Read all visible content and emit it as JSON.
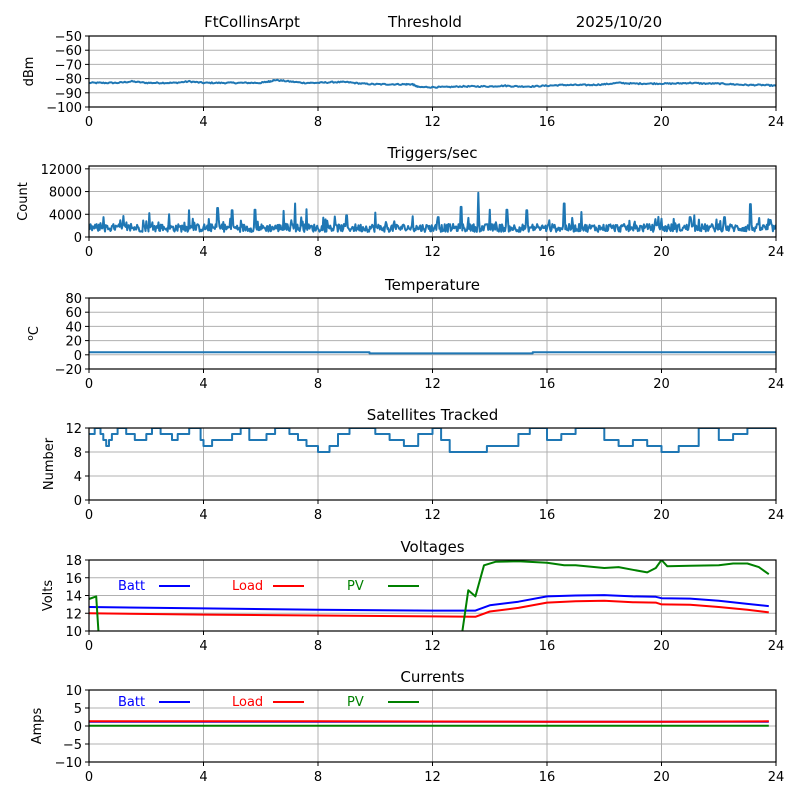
{
  "header": {
    "station": "FtCollinsArpt",
    "mode": "Threshold",
    "date": "2025/10/20"
  },
  "chart_data": [
    {
      "id": "signal",
      "type": "line",
      "title": "",
      "ylabel": "dBm",
      "xlim": [
        0,
        24
      ],
      "ylim": [
        -100,
        -50
      ],
      "xticks": [
        0,
        4,
        8,
        12,
        16,
        20,
        24
      ],
      "yticks": [
        -100,
        -90,
        -80,
        -70,
        -60,
        -50
      ],
      "ytick_labels": [
        "−100",
        "−90",
        "−80",
        "−70",
        "−60",
        "−50"
      ],
      "grid": true,
      "series": [
        {
          "name": "signal",
          "color": "#1f77b4",
          "x": [
            0,
            0.5,
            1,
            1.5,
            2,
            2.5,
            3,
            3.5,
            4,
            4.5,
            5,
            5.5,
            6,
            6.3,
            6.5,
            7,
            7.5,
            8,
            8.5,
            9,
            9.5,
            10,
            10.5,
            11,
            11.3,
            11.5,
            12,
            12.5,
            13,
            13.5,
            14,
            14.5,
            15,
            15.5,
            16,
            16.5,
            17,
            17.5,
            18,
            18.5,
            19,
            19.5,
            20,
            20.5,
            21,
            21.5,
            22,
            22.5,
            23,
            23.5,
            24
          ],
          "y": [
            -83,
            -83,
            -83,
            -82,
            -83,
            -83,
            -83,
            -82,
            -83,
            -83,
            -83,
            -83,
            -83,
            -82,
            -81,
            -82,
            -83,
            -83,
            -82.5,
            -82.5,
            -83.5,
            -84,
            -84,
            -84,
            -84,
            -86,
            -86,
            -86,
            -85.5,
            -85.5,
            -85.5,
            -85,
            -85.5,
            -85.5,
            -85,
            -84.5,
            -84.5,
            -84.5,
            -84,
            -83,
            -83.5,
            -83.5,
            -83.5,
            -83.5,
            -83,
            -83.5,
            -83.5,
            -84,
            -84.5,
            -84.5,
            -85
          ]
        }
      ]
    },
    {
      "id": "triggers",
      "type": "line",
      "title": "Triggers/sec",
      "ylabel": "Count",
      "xlim": [
        0,
        24
      ],
      "ylim": [
        0,
        12500
      ],
      "xticks": [
        0,
        4,
        8,
        12,
        16,
        20,
        24
      ],
      "yticks": [
        0,
        4000,
        8000,
        12000
      ],
      "ytick_labels": [
        "0",
        "4000",
        "8000",
        "12000"
      ],
      "grid": true,
      "baseline": 1600,
      "series": [
        {
          "name": "triggers",
          "color": "#1f77b4",
          "peaks": [
            [
              0.5,
              3500
            ],
            [
              1.2,
              3700
            ],
            [
              2.1,
              4200
            ],
            [
              2.8,
              4000
            ],
            [
              3.5,
              4700
            ],
            [
              4.5,
              5100
            ],
            [
              5.0,
              4700
            ],
            [
              5.8,
              4800
            ],
            [
              6.8,
              4600
            ],
            [
              7.2,
              5900
            ],
            [
              7.6,
              4900
            ],
            [
              9.0,
              3800
            ],
            [
              10.0,
              4300
            ],
            [
              12.2,
              3500
            ],
            [
              13.0,
              5300
            ],
            [
              13.6,
              7800
            ],
            [
              14.0,
              4800
            ],
            [
              14.6,
              4800
            ],
            [
              15.3,
              4700
            ],
            [
              16.6,
              5900
            ],
            [
              17.2,
              4400
            ],
            [
              20.0,
              3200
            ],
            [
              21.0,
              3500
            ],
            [
              22.2,
              3500
            ],
            [
              23.1,
              5800
            ],
            [
              23.8,
              3000
            ]
          ]
        }
      ]
    },
    {
      "id": "temperature",
      "type": "line",
      "title": "Temperature",
      "ylabel": "°C",
      "ylabel_display": "oC",
      "xlim": [
        0,
        24
      ],
      "ylim": [
        -20,
        80
      ],
      "xticks": [
        0,
        4,
        8,
        12,
        16,
        20,
        24
      ],
      "yticks": [
        -20,
        0,
        20,
        40,
        60,
        80
      ],
      "ytick_labels": [
        "−20",
        "0",
        "20",
        "40",
        "60",
        "80"
      ],
      "grid": true,
      "series": [
        {
          "name": "temperature",
          "color": "#1f77b4",
          "x": [
            0,
            9.8,
            9.8,
            15.5,
            15.5,
            24
          ],
          "y": [
            3.5,
            3.5,
            2,
            2,
            3.5,
            3.5
          ]
        }
      ]
    },
    {
      "id": "satellites",
      "type": "line",
      "title": "Satellites Tracked",
      "ylabel": "Number",
      "xlim": [
        0,
        24
      ],
      "ylim": [
        0,
        12
      ],
      "xticks": [
        0,
        4,
        8,
        12,
        16,
        20,
        24
      ],
      "yticks": [
        0,
        4,
        8,
        12
      ],
      "ytick_labels": [
        "0",
        "4",
        "8",
        "12"
      ],
      "grid": true,
      "series": [
        {
          "name": "satellites",
          "color": "#1f77b4",
          "x": [
            0,
            0.2,
            0.2,
            0.4,
            0.4,
            0.5,
            0.5,
            0.6,
            0.6,
            0.7,
            0.7,
            0.8,
            0.8,
            1.0,
            1.0,
            1.3,
            1.3,
            1.6,
            1.6,
            2.0,
            2.0,
            2.2,
            2.2,
            2.5,
            2.5,
            2.9,
            2.9,
            3.1,
            3.1,
            3.5,
            3.5,
            3.9,
            3.9,
            4.0,
            4.0,
            4.3,
            4.3,
            5.0,
            5.0,
            5.3,
            5.3,
            5.6,
            5.6,
            6.2,
            6.2,
            6.5,
            6.5,
            7.0,
            7.0,
            7.3,
            7.3,
            7.6,
            7.6,
            8.0,
            8.0,
            8.4,
            8.4,
            8.7,
            8.7,
            9.1,
            9.1,
            10.0,
            10.0,
            10.5,
            10.5,
            11.0,
            11.0,
            11.5,
            11.5,
            12.0,
            12.0,
            12.3,
            12.3,
            12.6,
            12.6,
            13.9,
            13.9,
            15.0,
            15.0,
            15.4,
            15.4,
            16.0,
            16.0,
            16.5,
            16.5,
            17.0,
            17.0,
            18.0,
            18.0,
            18.5,
            18.5,
            19.0,
            19.0,
            19.5,
            19.5,
            20.0,
            20.0,
            20.6,
            20.6,
            21.3,
            21.3,
            22.0,
            22.0,
            22.5,
            22.5,
            23.0,
            23.0,
            24
          ],
          "y": [
            11,
            11,
            12,
            12,
            11,
            11,
            10,
            10,
            9,
            9,
            10,
            10,
            11,
            11,
            12,
            12,
            11,
            11,
            10,
            10,
            11,
            11,
            12,
            12,
            11,
            11,
            10,
            10,
            11,
            11,
            12,
            12,
            10,
            10,
            9,
            9,
            10,
            10,
            11,
            11,
            12,
            12,
            10,
            10,
            11,
            11,
            12,
            12,
            11,
            11,
            10,
            10,
            9,
            9,
            8,
            8,
            9,
            9,
            11,
            11,
            12,
            12,
            11,
            11,
            10,
            10,
            9,
            9,
            11,
            11,
            12,
            12,
            10,
            10,
            8,
            8,
            9,
            9,
            11,
            11,
            12,
            12,
            10,
            10,
            11,
            11,
            12,
            12,
            10,
            10,
            9,
            9,
            10,
            10,
            9,
            9,
            8,
            8,
            9,
            9,
            12,
            12,
            10,
            10,
            11,
            11,
            12,
            12
          ]
        }
      ]
    },
    {
      "id": "voltages",
      "type": "line",
      "title": "Voltages",
      "ylabel": "Volts",
      "xlim": [
        0,
        24
      ],
      "ylim": [
        10,
        18
      ],
      "xticks": [
        0,
        4,
        8,
        12,
        16,
        20,
        24
      ],
      "yticks": [
        10,
        12,
        14,
        16,
        18
      ],
      "ytick_labels": [
        "10",
        "12",
        "14",
        "16",
        "18"
      ],
      "grid": true,
      "legend": "top-left-inline",
      "series": [
        {
          "name": "Batt",
          "color": "#0000ff",
          "x": [
            0,
            4,
            8,
            12,
            13.5,
            14,
            15,
            16,
            17,
            18,
            19,
            19.8,
            20,
            21,
            22,
            23,
            23.75
          ],
          "y": [
            12.7,
            12.55,
            12.4,
            12.3,
            12.3,
            12.9,
            13.3,
            13.9,
            14.0,
            14.05,
            13.9,
            13.85,
            13.7,
            13.65,
            13.4,
            13.05,
            12.8
          ]
        },
        {
          "name": "Load",
          "color": "#ff0000",
          "x": [
            0,
            4,
            8,
            12,
            13.5,
            14,
            15,
            16,
            17,
            18,
            19,
            19.8,
            20,
            21,
            22,
            23,
            23.75
          ],
          "y": [
            12.0,
            11.85,
            11.75,
            11.65,
            11.6,
            12.2,
            12.6,
            13.2,
            13.35,
            13.4,
            13.25,
            13.2,
            13.0,
            12.95,
            12.7,
            12.4,
            12.1
          ]
        },
        {
          "name": "PV",
          "color": "#008000",
          "x": [
            0,
            0.25,
            0.35,
            13.0,
            13.25,
            13.5,
            13.8,
            14.2,
            15.0,
            16.0,
            16.6,
            17.0,
            18.0,
            18.5,
            19.0,
            19.5,
            19.8,
            20.0,
            20.2,
            21.0,
            22.0,
            22.5,
            23.0,
            23.4,
            23.75
          ],
          "y": [
            13.6,
            13.9,
            9.0,
            9.0,
            14.6,
            13.9,
            17.4,
            17.8,
            17.85,
            17.7,
            17.4,
            17.4,
            17.1,
            17.2,
            16.9,
            16.6,
            17.1,
            18.0,
            17.3,
            17.35,
            17.4,
            17.6,
            17.6,
            17.2,
            16.4
          ]
        }
      ]
    },
    {
      "id": "currents",
      "type": "line",
      "title": "Currents",
      "ylabel": "Amps",
      "xlim": [
        0,
        24
      ],
      "ylim": [
        -10,
        10
      ],
      "xticks": [
        0,
        4,
        8,
        12,
        16,
        20,
        24
      ],
      "yticks": [
        -10,
        -5,
        0,
        5,
        10
      ],
      "ytick_labels": [
        "−10",
        "−5",
        "0",
        "5",
        "10"
      ],
      "grid": true,
      "legend": "top-left-inline",
      "series": [
        {
          "name": "Batt",
          "color": "#0000ff",
          "x": [
            0,
            23.75
          ],
          "y": [
            1.2,
            1.2
          ]
        },
        {
          "name": "Load",
          "color": "#ff0000",
          "x": [
            0,
            4,
            8,
            12,
            16,
            20,
            23.75
          ],
          "y": [
            1.3,
            1.3,
            1.3,
            1.25,
            1.2,
            1.2,
            1.3
          ]
        },
        {
          "name": "PV",
          "color": "#008000",
          "x": [
            0,
            23.75
          ],
          "y": [
            0.05,
            0.05
          ]
        }
      ]
    }
  ]
}
